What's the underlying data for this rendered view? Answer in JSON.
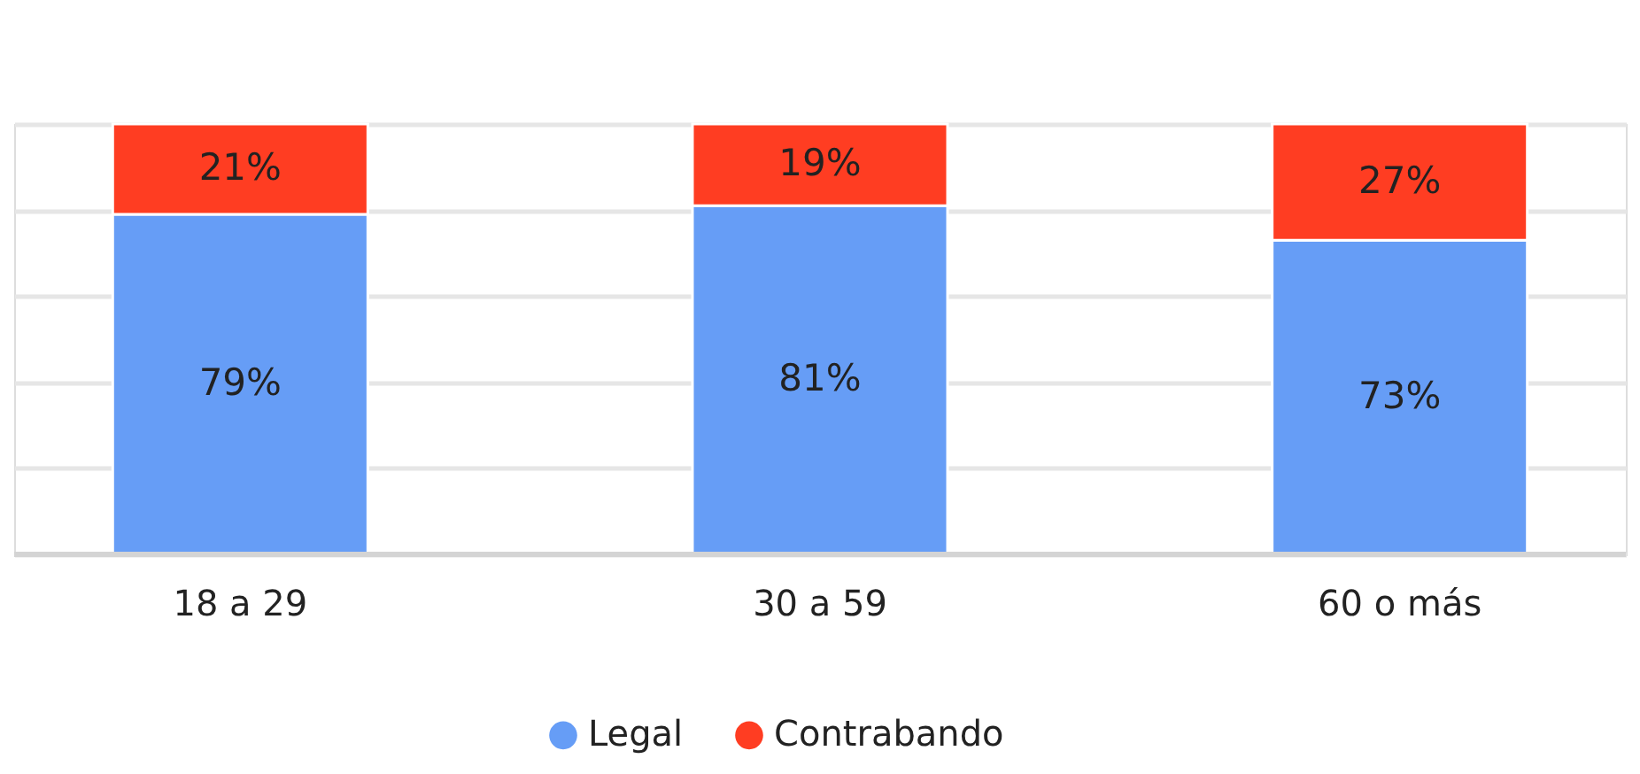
{
  "chart_data": {
    "type": "bar",
    "stacked": true,
    "categories": [
      "18 a 29",
      "30 a 59",
      "60 o más"
    ],
    "series": [
      {
        "name": "Legal",
        "color": "#669df6",
        "values": [
          79,
          81,
          73
        ],
        "value_labels": [
          "79%",
          "81%",
          "73%"
        ]
      },
      {
        "name": "Contrabando",
        "color": "#ff3d22",
        "values": [
          21,
          19,
          27
        ],
        "value_labels": [
          "21%",
          "19%",
          "27%"
        ]
      }
    ],
    "tick_labels": "x",
    "grid": "y",
    "legend": "bottom"
  }
}
